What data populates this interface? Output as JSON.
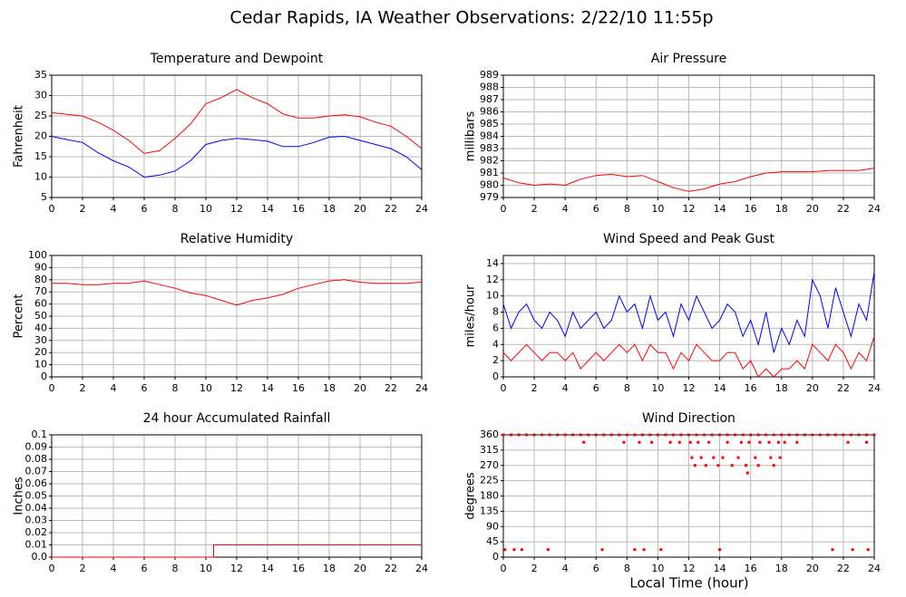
{
  "title": "Cedar Rapids, IA Weather Observations: 2/22/10 11:55p",
  "xlabel": "Local Time (hour)",
  "chart_data": [
    {
      "type": "line",
      "title": "Temperature and Dewpoint",
      "ylabel": "Fahrenheit",
      "x": [
        0,
        1,
        2,
        3,
        4,
        5,
        6,
        7,
        8,
        9,
        10,
        11,
        12,
        13,
        14,
        15,
        16,
        17,
        18,
        19,
        20,
        21,
        22,
        23,
        24
      ],
      "series": [
        {
          "color": "#ff0000",
          "values": [
            25.8,
            25.4,
            25.0,
            23.5,
            21.5,
            19,
            15.8,
            16.5,
            19.5,
            23,
            28,
            29.5,
            31.5,
            29.5,
            28,
            25.5,
            24.5,
            24.5,
            25,
            25.3,
            24.8,
            23.5,
            22.5,
            20,
            17
          ]
        },
        {
          "color": "#0000ff",
          "values": [
            20,
            19.2,
            18.5,
            16,
            14,
            12.5,
            10,
            10.5,
            11.5,
            14,
            18,
            19,
            19.5,
            19.2,
            18.8,
            17.5,
            17.5,
            18.5,
            19.8,
            20,
            19,
            18,
            17,
            15,
            11.8
          ]
        }
      ],
      "xlim": [
        0,
        24
      ],
      "xticks": [
        0,
        2,
        4,
        6,
        8,
        10,
        12,
        14,
        16,
        18,
        20,
        22,
        24
      ],
      "ylim": [
        5,
        35
      ],
      "yticks": [
        5,
        10,
        15,
        20,
        25,
        30,
        35
      ],
      "grid": true
    },
    {
      "type": "line",
      "title": "Air Pressure",
      "ylabel": "millibars",
      "x": [
        0,
        1,
        2,
        3,
        4,
        5,
        6,
        7,
        8,
        9,
        10,
        11,
        12,
        13,
        14,
        15,
        16,
        17,
        18,
        19,
        20,
        21,
        22,
        23,
        24
      ],
      "series": [
        {
          "color": "#ff0000",
          "values": [
            980.6,
            980.2,
            980.0,
            980.1,
            980.0,
            980.5,
            980.8,
            980.9,
            980.7,
            980.8,
            980.3,
            979.8,
            979.5,
            979.7,
            980.1,
            980.3,
            980.7,
            981.0,
            981.1,
            981.1,
            981.1,
            981.2,
            981.2,
            981.2,
            981.4
          ]
        }
      ],
      "xlim": [
        0,
        24
      ],
      "xticks": [
        0,
        2,
        4,
        6,
        8,
        10,
        12,
        14,
        16,
        18,
        20,
        22,
        24
      ],
      "ylim": [
        979,
        989
      ],
      "yticks": [
        979,
        980,
        981,
        982,
        983,
        984,
        985,
        986,
        987,
        988,
        989
      ],
      "grid": true
    },
    {
      "type": "line",
      "title": "Relative Humidity",
      "ylabel": "Percent",
      "x": [
        0,
        1,
        2,
        3,
        4,
        5,
        6,
        7,
        8,
        9,
        10,
        11,
        12,
        13,
        14,
        15,
        16,
        17,
        18,
        19,
        20,
        21,
        22,
        23,
        24
      ],
      "series": [
        {
          "color": "#ff0000",
          "values": [
            77,
            77,
            76,
            76,
            77,
            77,
            79,
            76,
            73,
            69,
            67,
            63,
            59,
            63,
            65,
            68,
            73,
            76,
            79,
            80,
            78,
            77,
            77,
            77,
            78
          ]
        }
      ],
      "xlim": [
        0,
        24
      ],
      "xticks": [
        0,
        2,
        4,
        6,
        8,
        10,
        12,
        14,
        16,
        18,
        20,
        22,
        24
      ],
      "ylim": [
        0,
        100
      ],
      "yticks": [
        0,
        10,
        20,
        30,
        40,
        50,
        60,
        70,
        80,
        90,
        100
      ],
      "grid": true
    },
    {
      "type": "line",
      "title": "Wind Speed and Peak Gust",
      "ylabel": "miles/hour",
      "x": [
        0,
        0.5,
        1,
        1.5,
        2,
        2.5,
        3,
        3.5,
        4,
        4.5,
        5,
        5.5,
        6,
        6.5,
        7,
        7.5,
        8,
        8.5,
        9,
        9.5,
        10,
        10.5,
        11,
        11.5,
        12,
        12.5,
        13,
        13.5,
        14,
        14.5,
        15,
        15.5,
        16,
        16.5,
        17,
        17.5,
        18,
        18.5,
        19,
        19.5,
        20,
        20.5,
        21,
        21.5,
        22,
        22.5,
        23,
        23.5,
        24
      ],
      "series": [
        {
          "color": "#0000ff",
          "values": [
            9,
            6,
            8,
            9,
            7,
            6,
            8,
            7,
            5,
            8,
            6,
            7,
            8,
            6,
            7,
            10,
            8,
            9,
            6,
            10,
            7,
            8,
            5,
            9,
            7,
            10,
            8,
            6,
            7,
            9,
            8,
            5,
            7,
            4,
            8,
            3,
            6,
            4,
            7,
            5,
            12,
            10,
            6,
            11,
            8,
            5,
            9,
            7,
            13
          ]
        },
        {
          "color": "#ff0000",
          "values": [
            3,
            2,
            3,
            4,
            3,
            2,
            3,
            3,
            2,
            3,
            1,
            2,
            3,
            2,
            3,
            4,
            3,
            4,
            2,
            4,
            3,
            3,
            1,
            3,
            2,
            4,
            3,
            2,
            2,
            3,
            3,
            1,
            2,
            0,
            1,
            0,
            1,
            1,
            2,
            1,
            4,
            3,
            2,
            4,
            3,
            1,
            3,
            2,
            5
          ]
        }
      ],
      "xlim": [
        0,
        24
      ],
      "xticks": [
        0,
        2,
        4,
        6,
        8,
        10,
        12,
        14,
        16,
        18,
        20,
        22,
        24
      ],
      "ylim": [
        0,
        15
      ],
      "yticks": [
        0,
        2,
        4,
        6,
        8,
        10,
        12,
        14
      ],
      "grid": true
    },
    {
      "type": "line",
      "title": "24 hour Accumulated Rainfall",
      "ylabel": "Inches",
      "x": [
        0,
        10.5,
        10.5,
        24
      ],
      "series": [
        {
          "color": "#ff0000",
          "values": [
            0,
            0,
            0.01,
            0.01
          ]
        }
      ],
      "xlim": [
        0,
        24
      ],
      "xticks": [
        0,
        2,
        4,
        6,
        8,
        10,
        12,
        14,
        16,
        18,
        20,
        22,
        24
      ],
      "ylim": [
        0,
        0.1
      ],
      "yticks": [
        {
          "value": 0,
          "label": "0.0"
        },
        0.01,
        0.02,
        0.03,
        0.04,
        0.05,
        0.06,
        0.07,
        0.08,
        0.09,
        0.1
      ],
      "grid": true
    },
    {
      "type": "scatter",
      "title": "Wind Direction",
      "ylabel": "degrees",
      "x": [
        0,
        0.5,
        1,
        1.5,
        2,
        2.5,
        3,
        3.5,
        4,
        4.5,
        5,
        5.5,
        6,
        6.5,
        7,
        7.5,
        8,
        8.5,
        9,
        9.5,
        10,
        10.5,
        11,
        11.5,
        12,
        12.5,
        13,
        13.5,
        14,
        14.5,
        15,
        15.5,
        16,
        16.5,
        17,
        17.5,
        18,
        18.5,
        19,
        19.5,
        20,
        20.5,
        21,
        21.5,
        22,
        22.5,
        23,
        23.5,
        24,
        0.1,
        0.7,
        1.2,
        2.9,
        6.4,
        8.5,
        9.1,
        10.2,
        14.0,
        21.3,
        22.6,
        23.6,
        5.2,
        7.8,
        8.8,
        9.6,
        10.8,
        11.4,
        12.1,
        12.6,
        13.3,
        14.5,
        15.4,
        15.9,
        16.6,
        17.2,
        17.8,
        18.2,
        19,
        22.3,
        23.5,
        12.2,
        12.8,
        13.6,
        14.2,
        15.2,
        16.3,
        17.3,
        17.9,
        12.4,
        13.1,
        13.9,
        14.8,
        15.7,
        16.5,
        17.5,
        15.8
      ],
      "series": [
        {
          "color": "#ff0000",
          "values": [
            360,
            360,
            360,
            360,
            360,
            360,
            360,
            360,
            360,
            360,
            360,
            360,
            360,
            360,
            360,
            360,
            360,
            360,
            360,
            360,
            360,
            360,
            360,
            360,
            360,
            360,
            360,
            360,
            360,
            360,
            360,
            360,
            360,
            360,
            360,
            360,
            360,
            360,
            360,
            360,
            360,
            360,
            360,
            360,
            360,
            360,
            360,
            360,
            360,
            22,
            22,
            22,
            22,
            22,
            22,
            22,
            22,
            22,
            22,
            22,
            22,
            338,
            338,
            338,
            338,
            338,
            338,
            338,
            338,
            338,
            338,
            338,
            338,
            338,
            338,
            338,
            338,
            338,
            338,
            338,
            293,
            293,
            293,
            293,
            293,
            293,
            293,
            293,
            270,
            270,
            270,
            270,
            270,
            270,
            270,
            248
          ]
        }
      ],
      "xlim": [
        0,
        24
      ],
      "xticks": [
        0,
        2,
        4,
        6,
        8,
        10,
        12,
        14,
        16,
        18,
        20,
        22,
        24
      ],
      "ylim": [
        0,
        360
      ],
      "yticks": [
        0,
        45,
        90,
        135,
        180,
        225,
        270,
        315,
        360
      ],
      "grid": true
    }
  ]
}
